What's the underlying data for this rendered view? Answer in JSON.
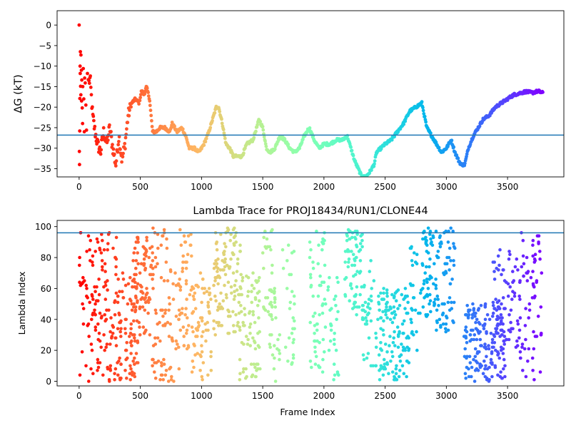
{
  "chart_data": [
    {
      "type": "scatter",
      "id": "free-energy",
      "title": "",
      "xlabel": "",
      "ylabel": "ΔG (kT)",
      "xlim": [
        -180,
        3960
      ],
      "ylim": [
        -37,
        3.5
      ],
      "xticks": [
        0,
        500,
        1000,
        1500,
        2000,
        2500,
        3000,
        3500
      ],
      "xtick_labels": [
        "0",
        "500",
        "1000",
        "1500",
        "2000",
        "2500",
        "3000",
        "3500"
      ],
      "yticks": [
        0,
        -5,
        -10,
        -15,
        -20,
        -25,
        -30,
        -35
      ],
      "ytick_labels": [
        "0",
        "−5",
        "−10",
        "−15",
        "−20",
        "−25",
        "−30",
        "−35"
      ],
      "hline": -26.8,
      "hline_color": "#1f77b4",
      "colormap": "rainbow-reversed",
      "x_max": 3790,
      "trace": {
        "x": [
          0,
          15,
          30,
          50,
          70,
          90,
          110,
          130,
          150,
          175,
          200,
          225,
          250,
          275,
          300,
          325,
          350,
          375,
          400,
          430,
          460,
          490,
          510,
          530,
          550,
          575,
          600,
          630,
          660,
          700,
          740,
          760,
          800,
          840,
          870,
          900,
          940,
          980,
          1020,
          1060,
          1090,
          1120,
          1140,
          1170,
          1200,
          1230,
          1260,
          1290,
          1330,
          1370,
          1420,
          1470,
          1500,
          1530,
          1560,
          1600,
          1640,
          1680,
          1720,
          1760,
          1800,
          1840,
          1880,
          1920,
          1960,
          2000,
          2050,
          2100,
          2150,
          2190,
          2220,
          2250,
          2280,
          2310,
          2340,
          2370,
          2410,
          2430,
          2500,
          2550,
          2600,
          2650,
          2700,
          2750,
          2800,
          2840,
          2880,
          2920,
          2960,
          3000,
          3040,
          3070,
          3100,
          3120,
          3150,
          3180,
          3220,
          3260,
          3300,
          3350,
          3400,
          3450,
          3500,
          3550,
          3600,
          3650,
          3700,
          3750,
          3790
        ],
        "y": [
          0,
          -13,
          -18,
          -16,
          -15,
          -13,
          -22,
          -26,
          -29,
          -31,
          -26,
          -29,
          -25,
          -30,
          -34,
          -27,
          -33,
          -29,
          -22,
          -19,
          -18,
          -19,
          -16,
          -17,
          -15,
          -18,
          -26,
          -26,
          -25,
          -25,
          -26,
          -24,
          -26,
          -25,
          -27,
          -30,
          -30,
          -31,
          -29,
          -26,
          -23,
          -20,
          -20,
          -24,
          -29,
          -30,
          -32,
          -32,
          -32,
          -29,
          -28,
          -23,
          -25,
          -30,
          -31,
          -30,
          -27,
          -28,
          -30,
          -31,
          -30,
          -27,
          -25,
          -28,
          -30,
          -29,
          -29,
          -28,
          -28,
          -27,
          -30,
          -33,
          -35,
          -37,
          -37,
          -36,
          -34,
          -31,
          -29,
          -28,
          -26,
          -24,
          -21,
          -20,
          -19,
          -25,
          -27,
          -29,
          -31,
          -30,
          -28,
          -31,
          -33,
          -34,
          -34,
          -30,
          -27,
          -25,
          -23,
          -22,
          -20,
          -19,
          -18,
          -17,
          -16.6,
          -16.2,
          -16.5,
          -16.1,
          -16.6
        ]
      },
      "early_points": {
        "x": [
          0,
          2,
          3,
          5,
          6,
          8,
          9,
          10,
          12,
          14,
          15,
          18,
          20,
          22,
          25,
          28,
          30,
          34,
          38,
          42,
          45,
          50,
          55,
          60,
          68,
          75
        ],
        "y": [
          0,
          -30.8,
          -34,
          -25.8,
          -17.9,
          -10,
          -11.8,
          -6.5,
          -14.9,
          -17,
          -7.3,
          -11,
          -18.5,
          -13.4,
          -20.2,
          -24,
          -15,
          -10.6,
          -18,
          -26,
          -12.9,
          -14.1,
          -19.5,
          -25.6,
          -11.8,
          -13.3
        ]
      }
    },
    {
      "type": "scatter",
      "id": "lambda-trace",
      "title": "Lambda Trace for PROJ18434/RUN1/CLONE44",
      "xlabel": "Frame Index",
      "ylabel": "Lambda Index",
      "xlim": [
        -180,
        3960
      ],
      "ylim": [
        -3,
        104
      ],
      "xticks": [
        0,
        500,
        1000,
        1500,
        2000,
        2500,
        3000,
        3500
      ],
      "xtick_labels": [
        "0",
        "500",
        "1000",
        "1500",
        "2000",
        "2500",
        "3000",
        "3500"
      ],
      "yticks": [
        0,
        20,
        40,
        60,
        80,
        100
      ],
      "ytick_labels": [
        "0",
        "20",
        "40",
        "60",
        "80",
        "100"
      ],
      "hline": 96,
      "hline_color": "#1f77b4",
      "colormap": "rainbow-reversed",
      "x_max": 3790,
      "frames_plotted": 3790,
      "lambda_range": [
        0,
        99
      ],
      "clusters": [
        {
          "x": [
            0,
            60
          ],
          "lambda": [
            0,
            99
          ],
          "density": 0.5
        },
        {
          "x": [
            60,
            140
          ],
          "lambda": [
            0,
            99
          ],
          "density": 0.8
        },
        {
          "x": [
            140,
            310
          ],
          "lambda": [
            0,
            99
          ],
          "density": 0.9
        },
        {
          "x": [
            310,
            480
          ],
          "lambda": [
            0,
            70
          ],
          "density": 0.9
        },
        {
          "x": [
            420,
            580
          ],
          "lambda": [
            30,
            99
          ],
          "density": 0.9
        },
        {
          "x": [
            580,
            720
          ],
          "lambda": [
            0,
            99
          ],
          "density": 0.8
        },
        {
          "x": [
            720,
            820
          ],
          "lambda": [
            0,
            75
          ],
          "density": 0.6
        },
        {
          "x": [
            820,
            920
          ],
          "lambda": [
            20,
            99
          ],
          "density": 0.8
        },
        {
          "x": [
            920,
            1080
          ],
          "lambda": [
            0,
            70
          ],
          "density": 0.8
        },
        {
          "x": [
            1100,
            1320
          ],
          "lambda": [
            30,
            99
          ],
          "density": 0.9
        },
        {
          "x": [
            1300,
            1480
          ],
          "lambda": [
            0,
            70
          ],
          "density": 0.8
        },
        {
          "x": [
            1500,
            1580
          ],
          "lambda": [
            40,
            99
          ],
          "density": 0.6
        },
        {
          "x": [
            1550,
            1640
          ],
          "lambda": [
            0,
            60
          ],
          "density": 0.6
        },
        {
          "x": [
            1660,
            1760
          ],
          "lambda": [
            0,
            99
          ],
          "density": 0.5
        },
        {
          "x": [
            1880,
            2010
          ],
          "lambda": [
            0,
            99
          ],
          "density": 0.8
        },
        {
          "x": [
            2010,
            2120
          ],
          "lambda": [
            0,
            70
          ],
          "density": 0.5
        },
        {
          "x": [
            2170,
            2320
          ],
          "lambda": [
            40,
            99
          ],
          "density": 0.9
        },
        {
          "x": [
            2320,
            2430
          ],
          "lambda": [
            10,
            80
          ],
          "density": 0.6
        },
        {
          "x": [
            2440,
            2700
          ],
          "lambda": [
            0,
            60
          ],
          "density": 0.9
        },
        {
          "x": [
            2700,
            2800
          ],
          "lambda": [
            20,
            90
          ],
          "density": 0.5
        },
        {
          "x": [
            2800,
            2900
          ],
          "lambda": [
            40,
            99
          ],
          "density": 0.9
        },
        {
          "x": [
            2900,
            3070
          ],
          "lambda": [
            30,
            99
          ],
          "density": 0.8
        },
        {
          "x": [
            3140,
            3480
          ],
          "lambda": [
            0,
            50
          ],
          "density": 0.9
        },
        {
          "x": [
            3380,
            3600
          ],
          "lambda": [
            20,
            85
          ],
          "density": 0.6
        },
        {
          "x": [
            3600,
            3780
          ],
          "lambda": [
            0,
            99
          ],
          "density": 0.7
        }
      ]
    }
  ]
}
